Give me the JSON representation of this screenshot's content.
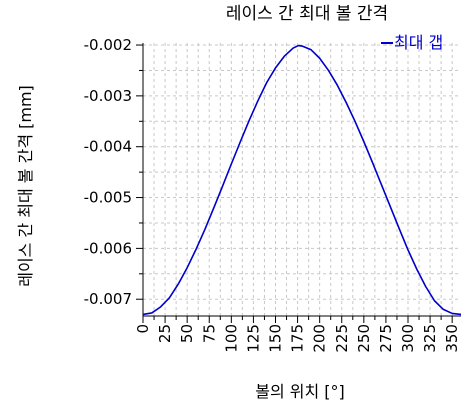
{
  "chart_data": {
    "type": "line",
    "title": "레이스 간 최대 볼 간격",
    "xlabel": "볼의 위치 [°]",
    "ylabel": "레이스 간 최대 볼 간격 [mm]",
    "xlim": [
      0,
      360
    ],
    "ylim": [
      -0.00733,
      -0.00196
    ],
    "x_ticks": [
      0,
      25,
      50,
      75,
      100,
      125,
      150,
      175,
      200,
      225,
      250,
      275,
      300,
      325,
      350
    ],
    "x_tick_labels": [
      "0",
      "25",
      "50",
      "75",
      "100",
      "125",
      "150",
      "175",
      "200",
      "225",
      "250",
      "275",
      "300",
      "325",
      "350"
    ],
    "y_ticks": [
      -0.002,
      -0.003,
      -0.004,
      -0.005,
      -0.006,
      -0.007
    ],
    "y_tick_labels": [
      "-0.002",
      "-0.003",
      "-0.004",
      "-0.005",
      "-0.006",
      "-0.007"
    ],
    "grid": true,
    "legend_position": "top-right",
    "colors": {
      "series": "#0000cc",
      "grid": "#c8c8c8",
      "axis": "#000000"
    },
    "series": [
      {
        "name": "최대 갭",
        "x": [
          0,
          10,
          20,
          30,
          40,
          50,
          60,
          70,
          80,
          90,
          100,
          110,
          120,
          130,
          140,
          150,
          160,
          170,
          176,
          180,
          190,
          200,
          210,
          220,
          230,
          240,
          250,
          260,
          270,
          280,
          290,
          300,
          310,
          320,
          330,
          340,
          350,
          360
        ],
        "y": [
          -0.0073,
          -0.00727,
          -0.00715,
          -0.00697,
          -0.0067,
          -0.00638,
          -0.00602,
          -0.00563,
          -0.00521,
          -0.00478,
          -0.00434,
          -0.00391,
          -0.00349,
          -0.0031,
          -0.00274,
          -0.00245,
          -0.00222,
          -0.00206,
          -0.00201,
          -0.00202,
          -0.00209,
          -0.00226,
          -0.0025,
          -0.00279,
          -0.00313,
          -0.0035,
          -0.0039,
          -0.00432,
          -0.00475,
          -0.00518,
          -0.00561,
          -0.00603,
          -0.00641,
          -0.00675,
          -0.00703,
          -0.0072,
          -0.00728,
          -0.0073
        ]
      }
    ]
  }
}
